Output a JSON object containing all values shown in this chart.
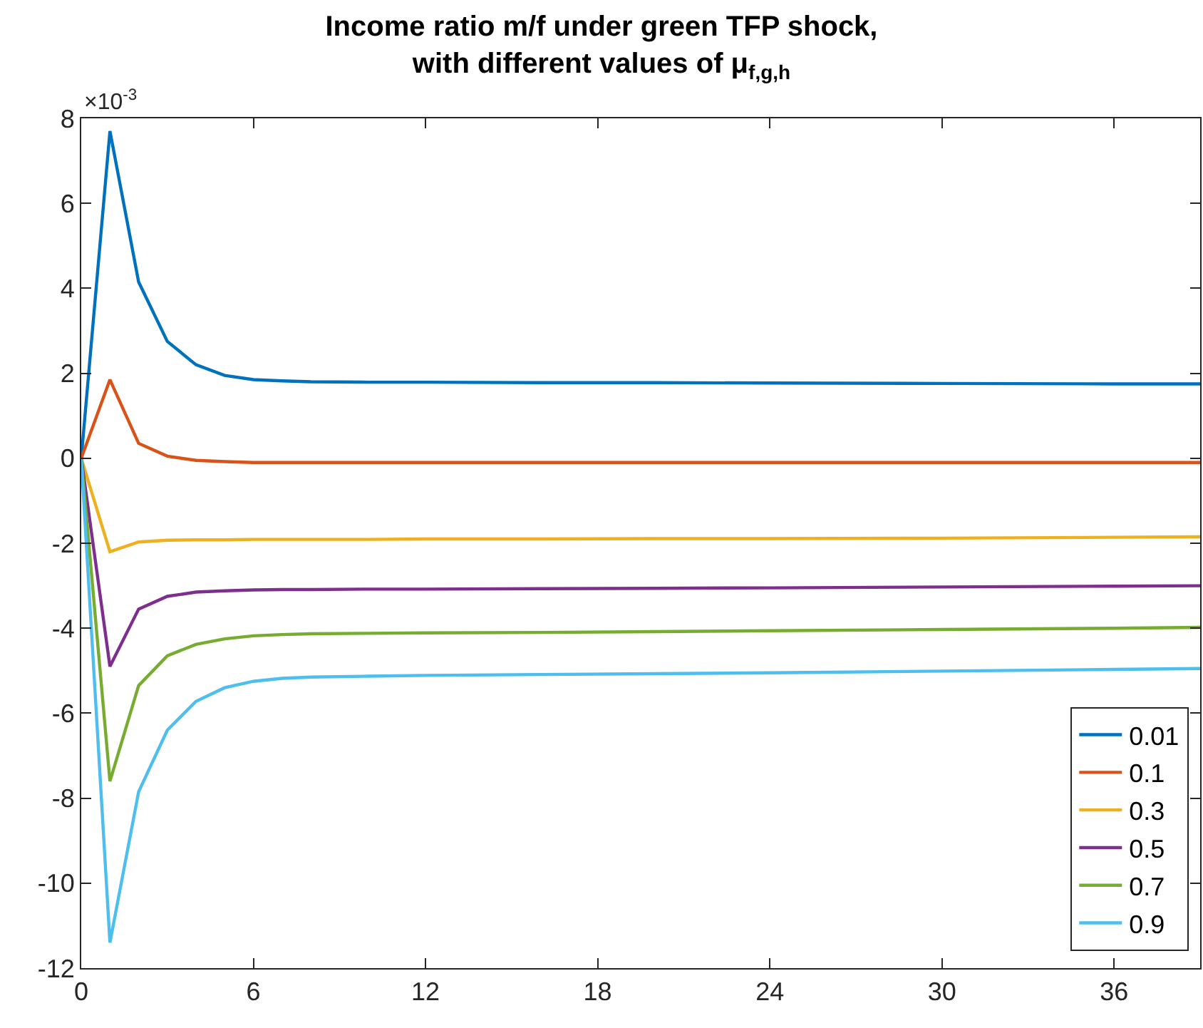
{
  "chart_data": {
    "type": "line",
    "title": "Income ratio m/f under green TFP shock,\nwith different values of μ$_{f,g,h}$",
    "annotations": [
      "×10$^{-3}$"
    ],
    "x": [
      0,
      1,
      2,
      3,
      4,
      5,
      6,
      7,
      8,
      10,
      12,
      16,
      20,
      24,
      30,
      36,
      39
    ],
    "series": [
      {
        "name": "0.01",
        "color": "#0072bd",
        "values": [
          0,
          7.7,
          4.15,
          2.75,
          2.2,
          1.95,
          1.85,
          1.82,
          1.8,
          1.79,
          1.79,
          1.78,
          1.78,
          1.77,
          1.76,
          1.75,
          1.75
        ]
      },
      {
        "name": "0.1",
        "color": "#d95319",
        "values": [
          0,
          1.85,
          0.35,
          0.05,
          -0.05,
          -0.08,
          -0.1,
          -0.1,
          -0.1,
          -0.1,
          -0.1,
          -0.1,
          -0.1,
          -0.1,
          -0.1,
          -0.1,
          -0.1
        ]
      },
      {
        "name": "0.3",
        "color": "#edb120",
        "values": [
          0,
          -2.2,
          -1.97,
          -1.93,
          -1.92,
          -1.92,
          -1.91,
          -1.91,
          -1.91,
          -1.91,
          -1.9,
          -1.9,
          -1.89,
          -1.89,
          -1.88,
          -1.86,
          -1.85
        ]
      },
      {
        "name": "0.5",
        "color": "#7e2f8e",
        "values": [
          0,
          -4.9,
          -3.55,
          -3.25,
          -3.15,
          -3.12,
          -3.1,
          -3.09,
          -3.09,
          -3.08,
          -3.08,
          -3.07,
          -3.06,
          -3.05,
          -3.03,
          -3.01,
          -3.0
        ]
      },
      {
        "name": "0.7",
        "color": "#77ac30",
        "values": [
          0,
          -7.6,
          -5.35,
          -4.65,
          -4.38,
          -4.25,
          -4.18,
          -4.15,
          -4.13,
          -4.12,
          -4.11,
          -4.1,
          -4.08,
          -4.06,
          -4.03,
          -4.0,
          -3.98
        ]
      },
      {
        "name": "0.9",
        "color": "#4dbeee",
        "values": [
          0,
          -11.4,
          -7.85,
          -6.4,
          -5.72,
          -5.4,
          -5.25,
          -5.18,
          -5.15,
          -5.13,
          -5.11,
          -5.09,
          -5.07,
          -5.05,
          -5.01,
          -4.97,
          -4.95
        ]
      }
    ],
    "xlim": [
      0,
      39
    ],
    "xticks": [
      0,
      6,
      12,
      18,
      24,
      30,
      36
    ],
    "ylim": [
      -12,
      8
    ],
    "yticks": [
      -12,
      -10,
      -8,
      -6,
      -4,
      -2,
      0,
      2,
      4,
      6,
      8
    ],
    "grid": false,
    "legend": "bottom right",
    "marker": "none",
    "line_style": "solid"
  }
}
